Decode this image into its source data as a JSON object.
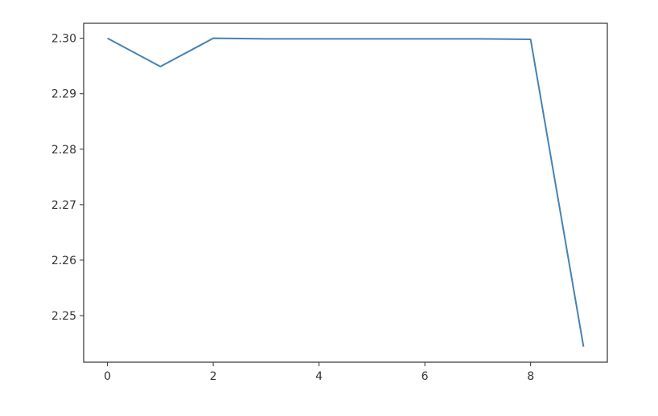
{
  "chart_data": {
    "type": "line",
    "title": "",
    "xlabel": "",
    "ylabel": "",
    "x": [
      0,
      1,
      2,
      3,
      4,
      5,
      6,
      7,
      8,
      9
    ],
    "series": [
      {
        "values": [
          2.3,
          2.2949,
          2.3,
          2.2999,
          2.2999,
          2.2999,
          2.2999,
          2.2999,
          2.2998,
          2.2444
        ],
        "color": "#4682b4"
      }
    ],
    "xlim": [
      -0.45,
      9.45
    ],
    "ylim": [
      2.2416,
      2.3027
    ],
    "xticks": [
      0,
      2,
      4,
      6,
      8
    ],
    "xtick_labels": [
      "0",
      "2",
      "4",
      "6",
      "8"
    ],
    "yticks": [
      2.25,
      2.26,
      2.27,
      2.28,
      2.29,
      2.3
    ],
    "ytick_labels": [
      "2.25",
      "2.26",
      "2.27",
      "2.28",
      "2.29",
      "2.30"
    ],
    "grid": false,
    "legend": "none"
  }
}
